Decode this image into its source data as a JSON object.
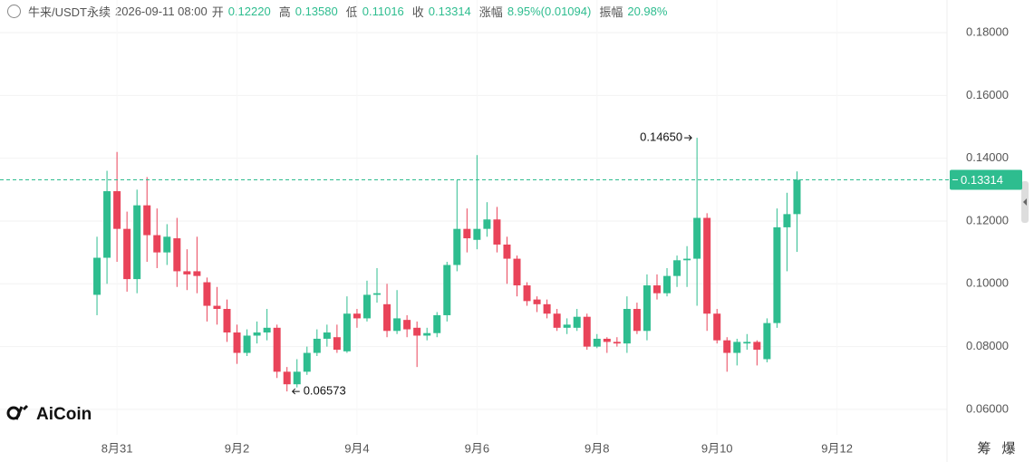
{
  "header": {
    "symbol": "牛来/USDT永续",
    "time": "2026-09-11 08:00",
    "fields": [
      {
        "label": "开",
        "value": "0.12220"
      },
      {
        "label": "高",
        "value": "0.13580"
      },
      {
        "label": "低",
        "value": "0.11016"
      },
      {
        "label": "收",
        "value": "0.13314"
      },
      {
        "label": "涨幅",
        "value": "8.95%(0.01094)"
      },
      {
        "label": "振幅",
        "value": "20.98%"
      }
    ]
  },
  "logo": "AiCoin",
  "tools": [
    "筹",
    "爆"
  ],
  "chart_data": {
    "type": "candlestick",
    "x": [
      0,
      1,
      2,
      3,
      4,
      5,
      6,
      7,
      8,
      9,
      10,
      11,
      12,
      13,
      14,
      15,
      16,
      17,
      18,
      19,
      20,
      21,
      22,
      23,
      24,
      25,
      26,
      27,
      28,
      29,
      30,
      31,
      32,
      33,
      34,
      35,
      36,
      37,
      38,
      39,
      40,
      41,
      42,
      43,
      44,
      45,
      46,
      47,
      48,
      49,
      50,
      51,
      52,
      53,
      54,
      55,
      56,
      57,
      58,
      59,
      60,
      61,
      62,
      63,
      64,
      65,
      66,
      67,
      68,
      69,
      70
    ],
    "open": [
      0.0965,
      0.1083,
      0.1295,
      0.1175,
      0.1015,
      0.125,
      0.1155,
      0.11,
      0.1145,
      0.104,
      0.104,
      0.1005,
      0.093,
      0.092,
      0.0845,
      0.078,
      0.0835,
      0.0845,
      0.086,
      0.072,
      0.068,
      0.072,
      0.078,
      0.0825,
      0.083,
      0.0785,
      0.0905,
      0.089,
      0.0965,
      0.0935,
      0.085,
      0.0885,
      0.086,
      0.0835,
      0.0843,
      0.09,
      0.106,
      0.1175,
      0.114,
      0.1175,
      0.1205,
      0.1125,
      0.108,
      0.0995,
      0.095,
      0.0935,
      0.0905,
      0.086,
      0.086,
      0.0895,
      0.08,
      0.0825,
      0.0815,
      0.081,
      0.092,
      0.085,
      0.0995,
      0.097,
      0.1025,
      0.1075,
      0.108,
      0.121,
      0.0905,
      0.082,
      0.078,
      0.081,
      0.0815,
      0.076,
      0.0875,
      0.118,
      0.1222
    ],
    "high": [
      0.115,
      0.136,
      0.142,
      0.123,
      0.13,
      0.134,
      0.124,
      0.119,
      0.121,
      0.111,
      0.115,
      0.102,
      0.099,
      0.095,
      0.087,
      0.0855,
      0.088,
      0.092,
      0.087,
      0.0735,
      0.076,
      0.08,
      0.0855,
      0.087,
      0.087,
      0.096,
      0.092,
      0.101,
      0.105,
      0.1,
      0.098,
      0.09,
      0.088,
      0.086,
      0.091,
      0.107,
      0.133,
      0.124,
      0.141,
      0.126,
      0.1245,
      0.115,
      0.109,
      0.1005,
      0.096,
      0.095,
      0.092,
      0.089,
      0.092,
      0.0905,
      0.084,
      0.083,
      0.083,
      0.096,
      0.094,
      0.103,
      0.103,
      0.105,
      0.109,
      0.112,
      0.1465,
      0.1225,
      0.092,
      0.083,
      0.0825,
      0.084,
      0.082,
      0.089,
      0.124,
      0.129,
      0.1358
    ],
    "low": [
      0.09,
      0.1,
      0.107,
      0.0975,
      0.097,
      0.107,
      0.105,
      0.106,
      0.099,
      0.098,
      0.097,
      0.088,
      0.087,
      0.0815,
      0.0745,
      0.077,
      0.081,
      0.082,
      0.07,
      0.06573,
      0.067,
      0.071,
      0.077,
      0.08,
      0.078,
      0.078,
      0.086,
      0.088,
      0.094,
      0.083,
      0.084,
      0.083,
      0.0735,
      0.082,
      0.083,
      0.088,
      0.104,
      0.11,
      0.111,
      0.115,
      0.11,
      0.1,
      0.096,
      0.093,
      0.091,
      0.089,
      0.085,
      0.084,
      0.085,
      0.079,
      0.0795,
      0.078,
      0.08,
      0.078,
      0.084,
      0.082,
      0.095,
      0.096,
      0.099,
      0.099,
      0.093,
      0.085,
      0.081,
      0.072,
      0.074,
      0.079,
      0.074,
      0.075,
      0.086,
      0.104,
      0.11016
    ],
    "close": [
      0.1083,
      0.1295,
      0.1175,
      0.1015,
      0.125,
      0.1155,
      0.11,
      0.115,
      0.104,
      0.103,
      0.1025,
      0.093,
      0.092,
      0.0845,
      0.078,
      0.0835,
      0.0845,
      0.086,
      0.072,
      0.068,
      0.072,
      0.078,
      0.0825,
      0.0845,
      0.079,
      0.0905,
      0.089,
      0.0965,
      0.097,
      0.085,
      0.089,
      0.0855,
      0.0835,
      0.0843,
      0.09,
      0.106,
      0.1175,
      0.1145,
      0.1175,
      0.1205,
      0.1125,
      0.108,
      0.0995,
      0.0945,
      0.0935,
      0.0905,
      0.086,
      0.087,
      0.0895,
      0.08,
      0.0825,
      0.0815,
      0.081,
      0.092,
      0.085,
      0.0995,
      0.097,
      0.1025,
      0.1075,
      0.108,
      0.121,
      0.0905,
      0.082,
      0.078,
      0.0815,
      0.0815,
      0.079,
      0.0875,
      0.118,
      0.1222,
      0.13314
    ],
    "up_color": "#2ebd8f",
    "down_color": "#e94359",
    "xlim": [
      -9.7,
      85
    ],
    "xticks": [
      {
        "value": 2,
        "label": "8月31"
      },
      {
        "value": 14,
        "label": "9月2"
      },
      {
        "value": 26,
        "label": "9月4"
      },
      {
        "value": 38,
        "label": "9月6"
      },
      {
        "value": 50,
        "label": "9月8"
      },
      {
        "value": 62,
        "label": "9月10"
      },
      {
        "value": 74,
        "label": "9月12"
      }
    ],
    "ylim": [
      0.0519,
      0.1904
    ],
    "yticks": [
      {
        "value": 0.06,
        "label": "0.06000"
      },
      {
        "value": 0.08,
        "label": "0.08000"
      },
      {
        "value": 0.1,
        "label": "0.10000"
      },
      {
        "value": 0.12,
        "label": "0.12000"
      },
      {
        "value": 0.14,
        "label": "0.14000"
      },
      {
        "value": 0.16,
        "label": "0.16000"
      },
      {
        "value": 0.18,
        "label": "0.18000"
      }
    ],
    "grid": true,
    "annotations": [
      {
        "x": 60,
        "value": 0.1465,
        "label": "0.14650",
        "side": "left"
      },
      {
        "x": 19,
        "value": 0.06573,
        "label": "0.06573",
        "side": "right"
      }
    ],
    "last_price": {
      "value": 0.13314,
      "label": "0.13314"
    }
  }
}
